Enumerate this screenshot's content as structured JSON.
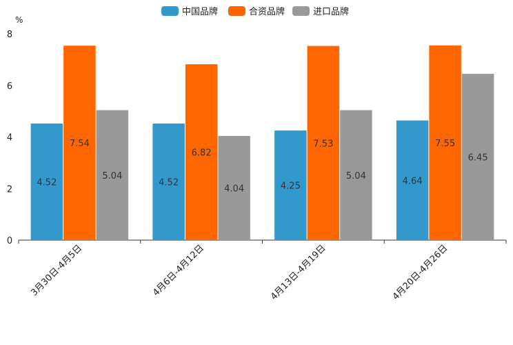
{
  "chart_data": {
    "type": "bar",
    "unit": "%",
    "categories": [
      "3月30日-4月5日",
      "4月6日-4月12日",
      "4月13日-4月19日",
      "4月20日-4月26日"
    ],
    "series": [
      {
        "name": "中国品牌",
        "color": "#3399cc",
        "values": [
          4.52,
          4.52,
          4.25,
          4.64
        ]
      },
      {
        "name": "合资品牌",
        "color": "#ff6600",
        "values": [
          7.54,
          6.82,
          7.53,
          7.55
        ]
      },
      {
        "name": "进口品牌",
        "color": "#999999",
        "values": [
          5.04,
          4.04,
          5.04,
          6.45
        ]
      }
    ],
    "ylim": [
      0,
      8
    ],
    "yticks": [
      0,
      2,
      4,
      6,
      8
    ],
    "legend_position": "top-center",
    "grid": false
  }
}
